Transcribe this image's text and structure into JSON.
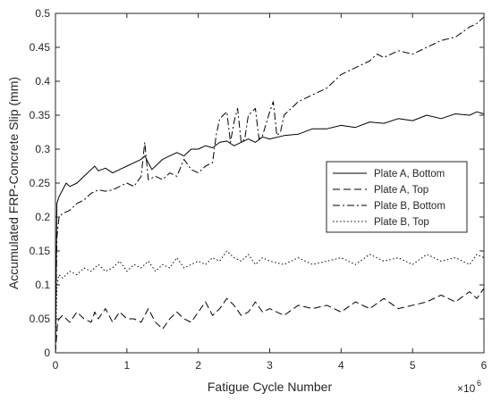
{
  "chart_data": {
    "type": "line",
    "title": "",
    "xlabel": "Fatigue Cycle Number",
    "ylabel": "Accumulated FRP-Concrete Slip (mm)",
    "x_exponent_label": "×10",
    "x_exponent_power": "6",
    "xlim": [
      0,
      6
    ],
    "ylim": [
      0,
      0.5
    ],
    "x_ticks": [
      0,
      1,
      2,
      3,
      4,
      5,
      6
    ],
    "x_tick_labels": [
      "0",
      "1",
      "2",
      "3",
      "4",
      "5",
      "6"
    ],
    "y_ticks": [
      0,
      0.05,
      0.1,
      0.15,
      0.2,
      0.25,
      0.3,
      0.35,
      0.4,
      0.45,
      0.5
    ],
    "y_tick_labels": [
      "0",
      "0.05",
      "0.1",
      "0.15",
      "0.2",
      "0.25",
      "0.3",
      "0.35",
      "0.4",
      "0.45",
      "0.5"
    ],
    "grid": false,
    "legend_position": "right",
    "x_units_note": "x values in units of 10^6 cycles",
    "series": [
      {
        "name": "Plate A, Bottom",
        "line_style": "solid",
        "color": "#000000",
        "x": [
          0,
          0.02,
          0.05,
          0.1,
          0.15,
          0.2,
          0.3,
          0.4,
          0.5,
          0.55,
          0.6,
          0.7,
          0.8,
          0.9,
          1.0,
          1.1,
          1.2,
          1.25,
          1.3,
          1.35,
          1.4,
          1.5,
          1.6,
          1.7,
          1.8,
          1.9,
          2.0,
          2.1,
          2.2,
          2.3,
          2.4,
          2.5,
          2.6,
          2.7,
          2.8,
          2.9,
          3.0,
          3.2,
          3.4,
          3.6,
          3.8,
          4.0,
          4.2,
          4.4,
          4.6,
          4.8,
          5.0,
          5.2,
          5.4,
          5.6,
          5.8,
          5.9,
          6.0
        ],
        "y": [
          0.0,
          0.22,
          0.23,
          0.24,
          0.25,
          0.245,
          0.25,
          0.26,
          0.27,
          0.275,
          0.268,
          0.272,
          0.265,
          0.27,
          0.275,
          0.28,
          0.285,
          0.29,
          0.28,
          0.27,
          0.275,
          0.285,
          0.29,
          0.295,
          0.29,
          0.3,
          0.3,
          0.305,
          0.302,
          0.31,
          0.312,
          0.305,
          0.31,
          0.315,
          0.31,
          0.318,
          0.315,
          0.32,
          0.322,
          0.33,
          0.33,
          0.335,
          0.332,
          0.34,
          0.338,
          0.345,
          0.342,
          0.35,
          0.345,
          0.352,
          0.35,
          0.355,
          0.352
        ]
      },
      {
        "name": "Plate A, Top",
        "line_style": "dashed",
        "color": "#000000",
        "x": [
          0,
          0.03,
          0.05,
          0.1,
          0.2,
          0.3,
          0.4,
          0.5,
          0.55,
          0.6,
          0.7,
          0.8,
          0.9,
          1.0,
          1.1,
          1.2,
          1.3,
          1.4,
          1.5,
          1.6,
          1.7,
          1.8,
          1.9,
          2.0,
          2.1,
          2.2,
          2.3,
          2.4,
          2.5,
          2.6,
          2.7,
          2.8,
          2.9,
          3.0,
          3.2,
          3.4,
          3.6,
          3.8,
          4.0,
          4.2,
          4.4,
          4.6,
          4.8,
          5.0,
          5.2,
          5.4,
          5.6,
          5.8,
          5.9,
          6.0
        ],
        "y": [
          0.0,
          0.045,
          0.05,
          0.055,
          0.045,
          0.06,
          0.05,
          0.045,
          0.06,
          0.05,
          0.065,
          0.045,
          0.06,
          0.05,
          0.05,
          0.045,
          0.065,
          0.045,
          0.035,
          0.05,
          0.06,
          0.05,
          0.045,
          0.06,
          0.075,
          0.055,
          0.065,
          0.08,
          0.07,
          0.055,
          0.06,
          0.075,
          0.06,
          0.065,
          0.055,
          0.07,
          0.065,
          0.07,
          0.06,
          0.075,
          0.065,
          0.08,
          0.065,
          0.07,
          0.075,
          0.085,
          0.075,
          0.09,
          0.08,
          0.095
        ]
      },
      {
        "name": "Plate B, Bottom",
        "line_style": "dashdot",
        "color": "#000000",
        "x": [
          0,
          0.02,
          0.05,
          0.1,
          0.2,
          0.3,
          0.4,
          0.5,
          0.6,
          0.7,
          0.8,
          0.9,
          1.0,
          1.1,
          1.2,
          1.25,
          1.3,
          1.4,
          1.5,
          1.6,
          1.7,
          1.8,
          1.9,
          2.0,
          2.1,
          2.2,
          2.25,
          2.3,
          2.4,
          2.45,
          2.5,
          2.55,
          2.6,
          2.65,
          2.7,
          2.8,
          2.85,
          2.9,
          3.0,
          3.05,
          3.1,
          3.15,
          3.2,
          3.4,
          3.6,
          3.8,
          4.0,
          4.2,
          4.4,
          4.5,
          4.6,
          4.8,
          5.0,
          5.2,
          5.4,
          5.6,
          5.8,
          5.9,
          6.0
        ],
        "y": [
          0.0,
          0.17,
          0.2,
          0.205,
          0.21,
          0.22,
          0.225,
          0.235,
          0.24,
          0.238,
          0.24,
          0.245,
          0.25,
          0.245,
          0.26,
          0.31,
          0.255,
          0.26,
          0.255,
          0.265,
          0.26,
          0.285,
          0.27,
          0.265,
          0.275,
          0.28,
          0.32,
          0.345,
          0.355,
          0.31,
          0.34,
          0.36,
          0.31,
          0.315,
          0.35,
          0.36,
          0.315,
          0.32,
          0.355,
          0.37,
          0.32,
          0.325,
          0.35,
          0.37,
          0.38,
          0.39,
          0.41,
          0.42,
          0.43,
          0.44,
          0.435,
          0.445,
          0.44,
          0.45,
          0.46,
          0.465,
          0.48,
          0.485,
          0.495
        ]
      },
      {
        "name": "Plate B, Top",
        "line_style": "dotted",
        "color": "#000000",
        "x": [
          0,
          0.02,
          0.05,
          0.1,
          0.2,
          0.3,
          0.4,
          0.5,
          0.6,
          0.7,
          0.8,
          0.9,
          1.0,
          1.1,
          1.2,
          1.3,
          1.4,
          1.5,
          1.6,
          1.7,
          1.8,
          1.9,
          2.0,
          2.1,
          2.2,
          2.3,
          2.4,
          2.5,
          2.6,
          2.7,
          2.8,
          2.9,
          3.0,
          3.2,
          3.4,
          3.6,
          3.8,
          4.0,
          4.2,
          4.4,
          4.6,
          4.8,
          5.0,
          5.2,
          5.4,
          5.6,
          5.8,
          5.9,
          6.0
        ],
        "y": [
          0.0,
          0.1,
          0.115,
          0.11,
          0.12,
          0.115,
          0.125,
          0.12,
          0.13,
          0.12,
          0.125,
          0.135,
          0.12,
          0.13,
          0.125,
          0.135,
          0.12,
          0.13,
          0.125,
          0.14,
          0.125,
          0.13,
          0.135,
          0.13,
          0.14,
          0.135,
          0.15,
          0.14,
          0.135,
          0.145,
          0.13,
          0.14,
          0.135,
          0.13,
          0.14,
          0.13,
          0.135,
          0.14,
          0.13,
          0.145,
          0.135,
          0.14,
          0.13,
          0.145,
          0.135,
          0.14,
          0.13,
          0.145,
          0.14
        ]
      }
    ]
  }
}
